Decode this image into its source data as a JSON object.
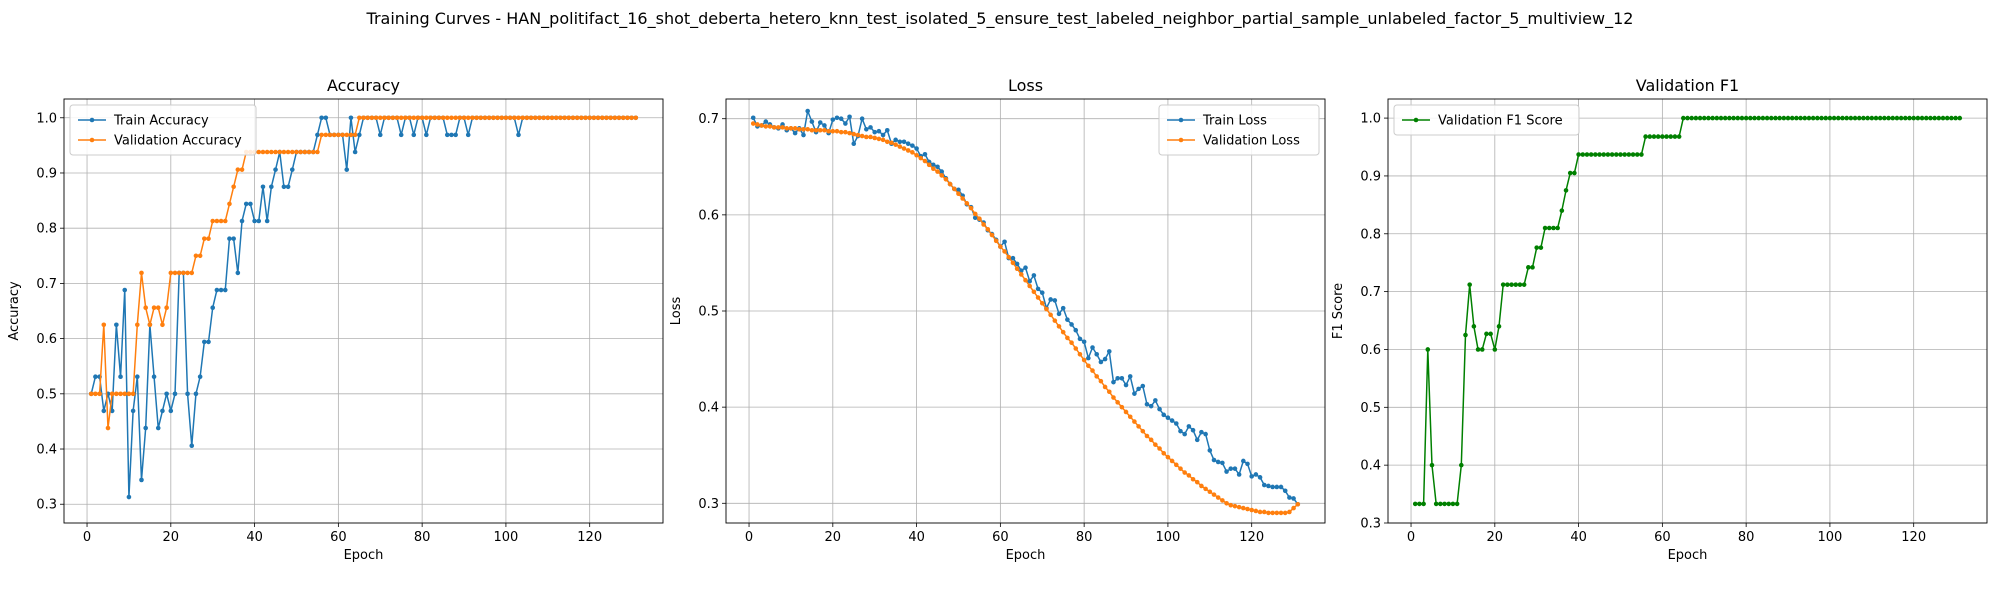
{
  "suptitle": "Training Curves - HAN_politifact_16_shot_deberta_hetero_knn_test_isolated_5_ensure_test_labeled_neighbor_partial_sample_unlabeled_factor_5_multiview_12",
  "colors": {
    "train": "#1f77b4",
    "val": "#ff7f0e",
    "f1": "#008000",
    "grid": "#b0b0b0"
  },
  "chart_data": [
    {
      "type": "line",
      "title": "Accuracy",
      "xlabel": "Epoch",
      "ylabel": "Accuracy",
      "xlim": [
        -5.5,
        137.5
      ],
      "ylim": [
        0.266,
        1.034
      ],
      "xticks": [
        0,
        20,
        40,
        60,
        80,
        100,
        120
      ],
      "yticks": [
        0.3,
        0.4,
        0.5,
        0.6,
        0.7,
        0.8,
        0.9,
        1.0
      ],
      "ytick_labels": [
        "0.3",
        "0.4",
        "0.5",
        "0.6",
        "0.7",
        "0.8",
        "0.9",
        "1.0"
      ],
      "grid": true,
      "legend_position": "upper-left",
      "series": [
        {
          "name": "Train Accuracy",
          "color": "#1f77b4",
          "values": [
            0.5,
            0.531,
            0.531,
            0.469,
            0.5,
            0.469,
            0.625,
            0.531,
            0.688,
            0.313,
            0.469,
            0.531,
            0.344,
            0.438,
            0.625,
            0.531,
            0.438,
            0.469,
            0.5,
            0.469,
            0.5,
            0.719,
            0.719,
            0.5,
            0.406,
            0.5,
            0.531,
            0.594,
            0.594,
            0.656,
            0.688,
            0.688,
            0.688,
            0.781,
            0.781,
            0.719,
            0.813,
            0.844,
            0.844,
            0.813,
            0.813,
            0.875,
            0.813,
            0.875,
            0.906,
            0.938,
            0.875,
            0.875,
            0.906,
            0.938,
            0.938,
            0.938,
            0.938,
            0.938,
            0.969,
            1.0,
            1.0,
            0.969,
            0.969,
            0.969,
            0.969,
            0.906,
            1.0,
            0.938,
            0.969,
            1.0,
            1.0,
            1.0,
            1.0,
            0.969,
            1.0,
            1.0,
            1.0,
            1.0,
            0.969,
            1.0,
            1.0,
            0.969,
            1.0,
            1.0,
            0.969,
            1.0,
            1.0,
            1.0,
            1.0,
            0.969,
            0.969,
            0.969,
            1.0,
            1.0,
            0.969,
            1.0,
            1.0,
            1.0,
            1.0,
            1.0,
            1.0,
            1.0,
            1.0,
            1.0,
            1.0,
            1.0,
            0.969,
            1.0,
            1.0,
            1.0,
            1.0,
            1.0,
            1.0,
            1.0,
            1.0,
            1.0,
            1.0,
            1.0,
            1.0,
            1.0,
            1.0,
            1.0,
            1.0,
            1.0,
            1.0,
            1.0,
            1.0,
            1.0,
            1.0,
            1.0,
            1.0,
            1.0,
            1.0,
            1.0,
            1.0
          ]
        },
        {
          "name": "Validation Accuracy",
          "color": "#ff7f0e",
          "values": [
            0.5,
            0.5,
            0.5,
            0.625,
            0.438,
            0.5,
            0.5,
            0.5,
            0.5,
            0.5,
            0.5,
            0.625,
            0.719,
            0.656,
            0.625,
            0.656,
            0.656,
            0.625,
            0.656,
            0.719,
            0.719,
            0.719,
            0.719,
            0.719,
            0.719,
            0.75,
            0.75,
            0.781,
            0.781,
            0.813,
            0.813,
            0.813,
            0.813,
            0.844,
            0.875,
            0.906,
            0.906,
            0.938,
            0.938,
            0.938,
            0.938,
            0.938,
            0.938,
            0.938,
            0.938,
            0.938,
            0.938,
            0.938,
            0.938,
            0.938,
            0.938,
            0.938,
            0.938,
            0.938,
            0.938,
            0.969,
            0.969,
            0.969,
            0.969,
            0.969,
            0.969,
            0.969,
            0.969,
            0.969,
            1.0,
            1.0,
            1.0,
            1.0,
            1.0,
            1.0,
            1.0,
            1.0,
            1.0,
            1.0,
            1.0,
            1.0,
            1.0,
            1.0,
            1.0,
            1.0,
            1.0,
            1.0,
            1.0,
            1.0,
            1.0,
            1.0,
            1.0,
            1.0,
            1.0,
            1.0,
            1.0,
            1.0,
            1.0,
            1.0,
            1.0,
            1.0,
            1.0,
            1.0,
            1.0,
            1.0,
            1.0,
            1.0,
            1.0,
            1.0,
            1.0,
            1.0,
            1.0,
            1.0,
            1.0,
            1.0,
            1.0,
            1.0,
            1.0,
            1.0,
            1.0,
            1.0,
            1.0,
            1.0,
            1.0,
            1.0,
            1.0,
            1.0,
            1.0,
            1.0,
            1.0,
            1.0,
            1.0,
            1.0,
            1.0,
            1.0,
            1.0
          ]
        }
      ]
    },
    {
      "type": "line",
      "title": "Loss",
      "xlabel": "Epoch",
      "ylabel": "Loss",
      "xlim": [
        -5.5,
        137.5
      ],
      "ylim": [
        0.2795,
        0.7205
      ],
      "xticks": [
        0,
        20,
        40,
        60,
        80,
        100,
        120
      ],
      "yticks": [
        0.3,
        0.4,
        0.5,
        0.6,
        0.7
      ],
      "ytick_labels": [
        "0.3",
        "0.4",
        "0.5",
        "0.6",
        "0.7"
      ],
      "grid": true,
      "legend_position": "upper-right",
      "series": [
        {
          "name": "Train Loss",
          "color": "#1f77b4",
          "values": [
            0.701,
            0.692,
            0.693,
            0.697,
            0.694,
            0.691,
            0.69,
            0.694,
            0.688,
            0.69,
            0.685,
            0.69,
            0.683,
            0.708,
            0.697,
            0.686,
            0.696,
            0.693,
            0.685,
            0.699,
            0.701,
            0.7,
            0.695,
            0.702,
            0.674,
            0.682,
            0.7,
            0.689,
            0.691,
            0.686,
            0.687,
            0.683,
            0.688,
            0.674,
            0.678,
            0.676,
            0.676,
            0.674,
            0.672,
            0.669,
            0.661,
            0.663,
            0.655,
            0.652,
            0.65,
            0.645,
            0.638,
            0.632,
            0.627,
            0.626,
            0.62,
            0.611,
            0.608,
            0.597,
            0.595,
            0.592,
            0.584,
            0.58,
            0.574,
            0.567,
            0.572,
            0.555,
            0.555,
            0.549,
            0.542,
            0.545,
            0.531,
            0.537,
            0.523,
            0.519,
            0.503,
            0.512,
            0.511,
            0.497,
            0.503,
            0.491,
            0.486,
            0.48,
            0.471,
            0.468,
            0.451,
            0.462,
            0.455,
            0.447,
            0.45,
            0.458,
            0.426,
            0.43,
            0.43,
            0.423,
            0.432,
            0.414,
            0.419,
            0.422,
            0.403,
            0.401,
            0.407,
            0.398,
            0.392,
            0.389,
            0.386,
            0.383,
            0.375,
            0.372,
            0.38,
            0.376,
            0.366,
            0.374,
            0.372,
            0.355,
            0.345,
            0.343,
            0.342,
            0.333,
            0.336,
            0.336,
            0.33,
            0.344,
            0.341,
            0.328,
            0.33,
            0.327,
            0.319,
            0.318,
            0.317,
            0.317,
            0.317,
            0.313,
            0.306,
            0.305,
            0.299
          ]
        },
        {
          "name": "Validation Loss",
          "color": "#ff7f0e",
          "values": [
            0.695,
            0.694,
            0.693,
            0.692,
            0.692,
            0.691,
            0.691,
            0.691,
            0.69,
            0.69,
            0.69,
            0.689,
            0.689,
            0.689,
            0.688,
            0.688,
            0.688,
            0.688,
            0.687,
            0.687,
            0.687,
            0.686,
            0.686,
            0.685,
            0.684,
            0.683,
            0.682,
            0.681,
            0.681,
            0.68,
            0.679,
            0.678,
            0.676,
            0.675,
            0.673,
            0.671,
            0.669,
            0.667,
            0.665,
            0.662,
            0.659,
            0.656,
            0.652,
            0.648,
            0.645,
            0.641,
            0.637,
            0.632,
            0.627,
            0.622,
            0.617,
            0.612,
            0.607,
            0.601,
            0.596,
            0.59,
            0.585,
            0.579,
            0.573,
            0.567,
            0.562,
            0.556,
            0.55,
            0.544,
            0.538,
            0.532,
            0.526,
            0.52,
            0.514,
            0.508,
            0.502,
            0.496,
            0.49,
            0.484,
            0.478,
            0.472,
            0.467,
            0.461,
            0.455,
            0.449,
            0.443,
            0.438,
            0.432,
            0.427,
            0.421,
            0.416,
            0.41,
            0.405,
            0.4,
            0.395,
            0.39,
            0.385,
            0.38,
            0.375,
            0.37,
            0.366,
            0.361,
            0.357,
            0.352,
            0.348,
            0.344,
            0.34,
            0.336,
            0.332,
            0.329,
            0.325,
            0.322,
            0.318,
            0.315,
            0.312,
            0.309,
            0.306,
            0.303,
            0.3,
            0.298,
            0.297,
            0.296,
            0.295,
            0.294,
            0.293,
            0.292,
            0.291,
            0.291,
            0.29,
            0.29,
            0.29,
            0.29,
            0.29,
            0.291,
            0.295,
            0.299
          ]
        }
      ]
    },
    {
      "type": "line",
      "title": "Validation F1",
      "xlabel": "Epoch",
      "ylabel": "F1 Score",
      "xlim": [
        -5.5,
        137.5
      ],
      "ylim": [
        0.3,
        1.033
      ],
      "xticks": [
        0,
        20,
        40,
        60,
        80,
        100,
        120
      ],
      "yticks": [
        0.3,
        0.4,
        0.5,
        0.6,
        0.7,
        0.8,
        0.9,
        1.0
      ],
      "ytick_labels": [
        "0.3",
        "0.4",
        "0.5",
        "0.6",
        "0.7",
        "0.8",
        "0.9",
        "1.0"
      ],
      "grid": true,
      "legend_position": "upper-left",
      "series": [
        {
          "name": "Validation F1 Score",
          "color": "#008000",
          "values": [
            0.333,
            0.333,
            0.333,
            0.6,
            0.4,
            0.333,
            0.333,
            0.333,
            0.333,
            0.333,
            0.333,
            0.4,
            0.625,
            0.712,
            0.64,
            0.6,
            0.6,
            0.627,
            0.627,
            0.6,
            0.64,
            0.712,
            0.712,
            0.712,
            0.712,
            0.712,
            0.712,
            0.742,
            0.742,
            0.776,
            0.776,
            0.81,
            0.81,
            0.81,
            0.81,
            0.84,
            0.875,
            0.905,
            0.905,
            0.937,
            0.937,
            0.937,
            0.937,
            0.937,
            0.937,
            0.937,
            0.937,
            0.937,
            0.937,
            0.937,
            0.937,
            0.937,
            0.937,
            0.937,
            0.937,
            0.968,
            0.968,
            0.968,
            0.968,
            0.968,
            0.968,
            0.968,
            0.968,
            0.968,
            1.0,
            1.0,
            1.0,
            1.0,
            1.0,
            1.0,
            1.0,
            1.0,
            1.0,
            1.0,
            1.0,
            1.0,
            1.0,
            1.0,
            1.0,
            1.0,
            1.0,
            1.0,
            1.0,
            1.0,
            1.0,
            1.0,
            1.0,
            1.0,
            1.0,
            1.0,
            1.0,
            1.0,
            1.0,
            1.0,
            1.0,
            1.0,
            1.0,
            1.0,
            1.0,
            1.0,
            1.0,
            1.0,
            1.0,
            1.0,
            1.0,
            1.0,
            1.0,
            1.0,
            1.0,
            1.0,
            1.0,
            1.0,
            1.0,
            1.0,
            1.0,
            1.0,
            1.0,
            1.0,
            1.0,
            1.0,
            1.0,
            1.0,
            1.0,
            1.0,
            1.0,
            1.0,
            1.0,
            1.0,
            1.0,
            1.0,
            1.0
          ]
        }
      ]
    }
  ]
}
